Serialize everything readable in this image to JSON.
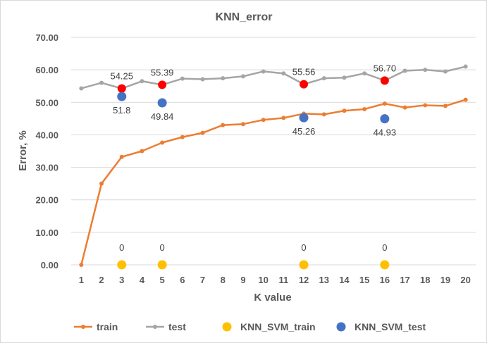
{
  "chart_data": {
    "type": "line",
    "title": "KNN_error",
    "xlabel": "K value",
    "ylabel": "Error, %",
    "ylim": [
      0,
      70
    ],
    "yticks": [
      "0.00",
      "10.00",
      "20.00",
      "30.00",
      "40.00",
      "50.00",
      "60.00",
      "70.00"
    ],
    "categories": [
      "1",
      "2",
      "3",
      "4",
      "5",
      "6",
      "7",
      "8",
      "9",
      "10",
      "11",
      "12",
      "13",
      "14",
      "15",
      "16",
      "17",
      "18",
      "19",
      "20"
    ],
    "grid": "horizontal",
    "legend_position": "bottom",
    "series": [
      {
        "name": "train",
        "color": "#ed7d31",
        "x": [
          1,
          2,
          3,
          4,
          5,
          6,
          7,
          8,
          9,
          10,
          11,
          12,
          13,
          14,
          15,
          16,
          17,
          18,
          19,
          20
        ],
        "values": [
          0.0,
          25.0,
          33.2,
          35.0,
          37.6,
          39.3,
          40.6,
          43.0,
          43.3,
          44.6,
          45.2,
          46.5,
          46.3,
          47.4,
          47.9,
          49.6,
          48.4,
          49.1,
          48.9,
          50.8
        ],
        "labels": []
      },
      {
        "name": "test",
        "color": "#a5a5a5",
        "x": [
          1,
          2,
          3,
          4,
          5,
          6,
          7,
          8,
          9,
          10,
          11,
          12,
          13,
          14,
          15,
          16,
          17,
          18,
          19,
          20
        ],
        "values": [
          54.3,
          56.0,
          54.25,
          56.5,
          55.39,
          57.3,
          57.1,
          57.4,
          58.0,
          59.5,
          58.9,
          55.56,
          57.4,
          57.6,
          58.9,
          56.7,
          59.7,
          60.0,
          59.5,
          61.0
        ],
        "highlight": {
          "x": [
            3,
            5,
            12,
            16
          ],
          "color": "#ff0000"
        },
        "labels": [
          {
            "x": 3,
            "text": "54.25"
          },
          {
            "x": 5,
            "text": "55.39"
          },
          {
            "x": 12,
            "text": "55.56"
          },
          {
            "x": 16,
            "text": "56.70"
          }
        ]
      },
      {
        "name": "KNN_SVM_train",
        "color": "#ffc000",
        "x": [
          3,
          5,
          12,
          16
        ],
        "values": [
          0,
          0,
          0,
          0
        ],
        "labels": [
          {
            "x": 3,
            "text": "0"
          },
          {
            "x": 5,
            "text": "0"
          },
          {
            "x": 12,
            "text": "0"
          },
          {
            "x": 16,
            "text": "0"
          }
        ]
      },
      {
        "name": "KNN_SVM_test",
        "color": "#4472c4",
        "x": [
          3,
          5,
          12,
          16
        ],
        "values": [
          51.8,
          49.84,
          45.26,
          44.93
        ],
        "labels": [
          {
            "x": 3,
            "text": "51.8"
          },
          {
            "x": 5,
            "text": "49.84"
          },
          {
            "x": 12,
            "text": "45.26"
          },
          {
            "x": 16,
            "text": "44.93"
          }
        ]
      }
    ]
  }
}
